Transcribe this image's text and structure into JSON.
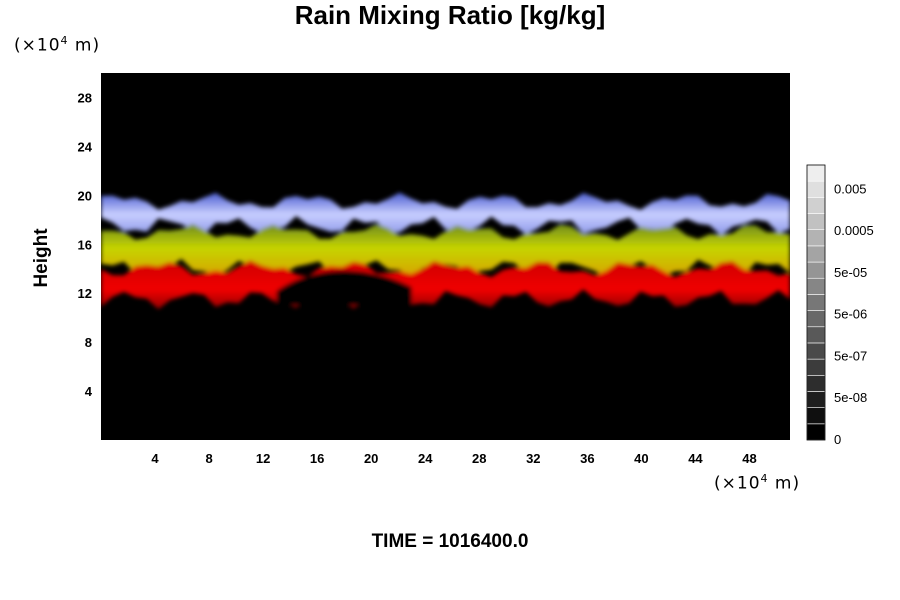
{
  "chart_data": {
    "type": "heatmap",
    "title": "Rain Mixing Ratio [kg/kg]",
    "xlabel": "",
    "ylabel": "Height",
    "x_unit": "(×10",
    "x_unit_exp": "4",
    "x_unit_suffix": " m)",
    "y_unit": "(×10",
    "y_unit_exp": "4",
    "y_unit_suffix": " m)",
    "x_ticks": [
      4,
      8,
      12,
      16,
      20,
      24,
      28,
      32,
      36,
      40,
      44,
      48
    ],
    "y_ticks": [
      4,
      8,
      12,
      16,
      20,
      24,
      28
    ],
    "xlim": [
      0,
      51
    ],
    "ylim": [
      0,
      30
    ],
    "background": "#000000",
    "layers": [
      {
        "name": "upper",
        "color": "#b8c2ff",
        "base_height": 17.5,
        "top_height": 19.5
      },
      {
        "name": "middle",
        "color": "#b5c800",
        "base_height": 14.0,
        "top_height": 17.0
      },
      {
        "name": "lower",
        "color": "#e00000",
        "base_height": 11.5,
        "top_height": 14.0
      }
    ],
    "colorbar": {
      "levels": 17,
      "labels": [
        "0.005",
        "0.0005",
        "5e-05",
        "5e-06",
        "5e-07",
        "5e-08",
        "0"
      ],
      "low_color": "#000000",
      "high_color": "#eeeeee"
    }
  },
  "footer": {
    "time_label": "TIME = 1016400.0"
  }
}
